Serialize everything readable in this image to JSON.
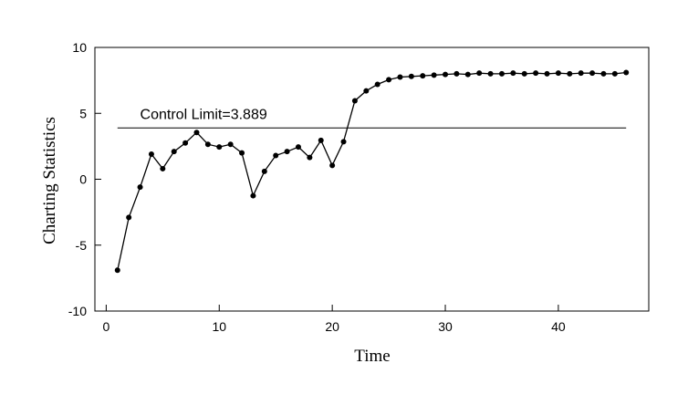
{
  "chart_data": {
    "type": "line",
    "title": "",
    "xlabel": "Time",
    "ylabel": "Charting Statistics",
    "xlim": [
      -1,
      48
    ],
    "ylim": [
      -10,
      10
    ],
    "xticks": [
      0,
      10,
      20,
      30,
      40
    ],
    "yticks": [
      -10,
      -5,
      0,
      5,
      10
    ],
    "grid": false,
    "legend": "none",
    "line_color": "#000000",
    "control_limit": {
      "value": 3.889,
      "label": "Control Limit=3.889",
      "x_start": 1,
      "x_end": 46
    },
    "series": [
      {
        "x": [
          1,
          2,
          3,
          4,
          5,
          6,
          7,
          8,
          9,
          10,
          11,
          12,
          13,
          14,
          15,
          16,
          17,
          18,
          19,
          20,
          21,
          22,
          23,
          24,
          25,
          26,
          27,
          28,
          29,
          30,
          31,
          32,
          33,
          34,
          35,
          36,
          37,
          38,
          39,
          40,
          41,
          42,
          43,
          44,
          45,
          46
        ],
        "values": [
          -6.9,
          -2.9,
          -0.6,
          1.9,
          0.8,
          2.1,
          2.75,
          3.55,
          2.65,
          2.45,
          2.65,
          2.0,
          -1.25,
          0.6,
          1.8,
          2.1,
          2.45,
          1.65,
          2.95,
          1.05,
          2.85,
          5.95,
          6.7,
          7.2,
          7.55,
          7.75,
          7.8,
          7.85,
          7.9,
          7.95,
          8.0,
          7.95,
          8.05,
          8.0,
          8.0,
          8.05,
          8.0,
          8.05,
          8.0,
          8.05,
          8.0,
          8.05,
          8.05,
          8.0,
          8.0,
          8.1
        ]
      }
    ]
  }
}
